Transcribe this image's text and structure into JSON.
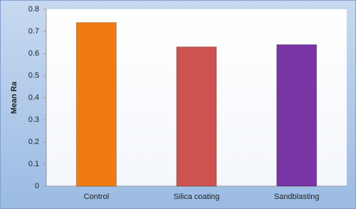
{
  "chart_data": {
    "type": "bar",
    "y_label": "Mean Ra",
    "categories": [
      "Control",
      "Silica coating",
      "Sandblasting"
    ],
    "values": [
      0.74,
      0.63,
      0.64
    ],
    "colors": [
      "#f07b13",
      "#cd5350",
      "#7935a6"
    ],
    "ylim": [
      0,
      0.8
    ],
    "yticks": [
      0,
      0.1,
      0.2,
      0.3,
      0.4,
      0.5,
      0.6,
      0.7,
      0.8
    ],
    "grid": false
  }
}
